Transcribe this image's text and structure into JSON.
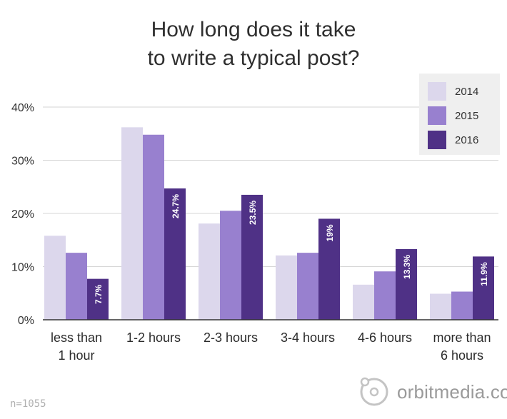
{
  "title": {
    "line1": "How long does it take",
    "line2": "to write a typical post?"
  },
  "footer": {
    "sample": "n=1055",
    "brand": "orbitmedia.com",
    "brand_icon": "orbit-logo-icon"
  },
  "colors": {
    "2014": "#dcd7ec",
    "2015": "#9880cf",
    "2016": "#4f3186",
    "axis": "#333333",
    "grid": "#d6d6d6",
    "legend_bg": "#efefef"
  },
  "chart_data": {
    "type": "bar",
    "title": "How long does it take to write a typical post?",
    "categories": [
      [
        "less than",
        "1 hour"
      ],
      [
        "1-2 hours"
      ],
      [
        "2-3 hours"
      ],
      [
        "3-4 hours"
      ],
      [
        "4-6 hours"
      ],
      [
        "more than",
        "6 hours"
      ]
    ],
    "series": [
      {
        "name": "2014",
        "values": [
          15.8,
          36.2,
          18.1,
          12.1,
          6.6,
          4.9
        ],
        "labels": [
          "",
          "",
          "",
          "",
          "",
          ""
        ]
      },
      {
        "name": "2015",
        "values": [
          12.6,
          34.8,
          20.5,
          12.6,
          9.1,
          5.3
        ],
        "labels": [
          "",
          "",
          "",
          "",
          "",
          ""
        ]
      },
      {
        "name": "2016",
        "values": [
          7.7,
          24.7,
          23.5,
          19.0,
          13.3,
          11.9
        ],
        "labels": [
          "7.7%",
          "24.7%",
          "23.5%",
          "19%",
          "13.3%",
          "11.9%"
        ]
      }
    ],
    "yticks": [
      "0%",
      "10%",
      "20%",
      "30%",
      "40%"
    ],
    "ylim": [
      0,
      40
    ],
    "xlabel": "",
    "ylabel": "",
    "grid": true,
    "legend_position": "top-right"
  }
}
